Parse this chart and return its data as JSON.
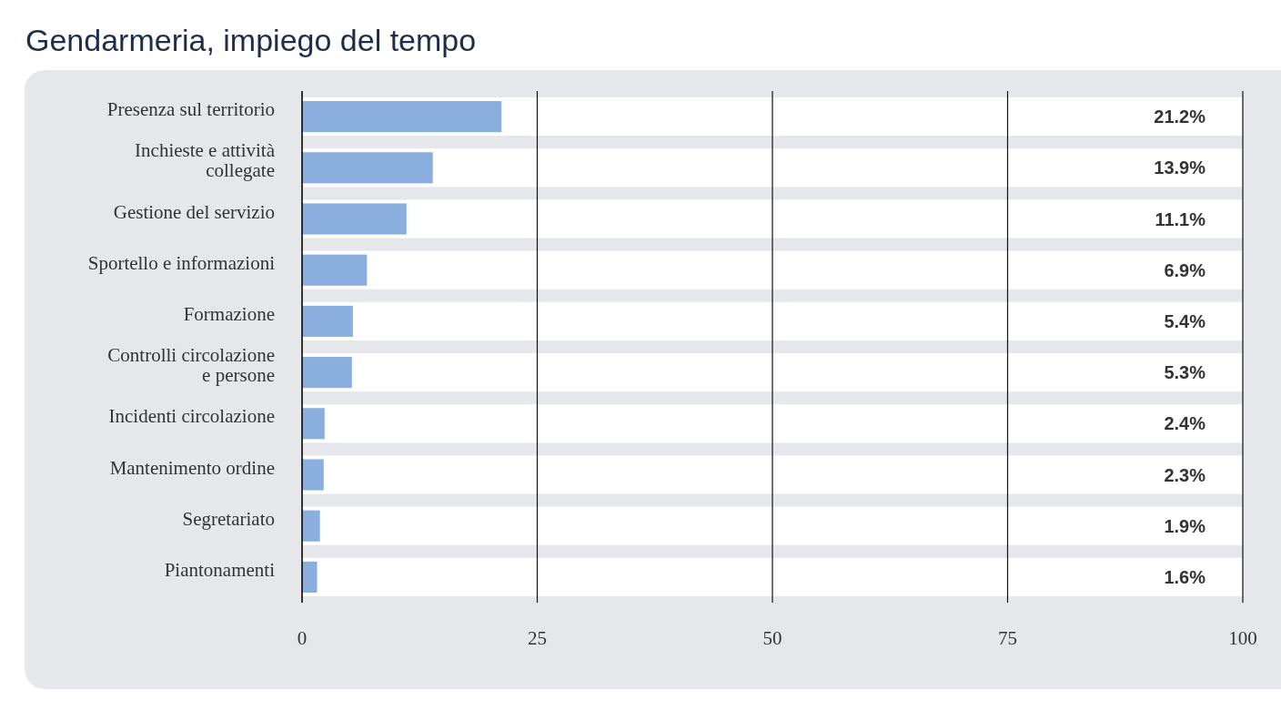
{
  "chart_data": {
    "type": "bar",
    "orientation": "horizontal",
    "title": "Gendarmeria, impiego del tempo",
    "categories": [
      "Presenza sul territorio",
      "Inchieste e attività collegate",
      "Gestione del servizio",
      "Sportello e informazioni",
      "Formazione",
      "Controlli circolazione e persone",
      "Incidenti circolazione",
      "Mantenimento ordine",
      "Segretariato",
      "Piantonamenti"
    ],
    "values": [
      21.2,
      13.9,
      11.1,
      6.9,
      5.4,
      5.3,
      2.4,
      2.3,
      1.9,
      1.6
    ],
    "value_labels": [
      "21.2%",
      "13.9%",
      "11.1%",
      "6.9%",
      "5.4%",
      "5.3%",
      "2.4%",
      "2.3%",
      "1.9%",
      "1.6%"
    ],
    "color": "#8aafdf",
    "xlim": [
      0,
      100
    ],
    "xticks": [
      0,
      25,
      50,
      75,
      100
    ],
    "grid": "x"
  }
}
